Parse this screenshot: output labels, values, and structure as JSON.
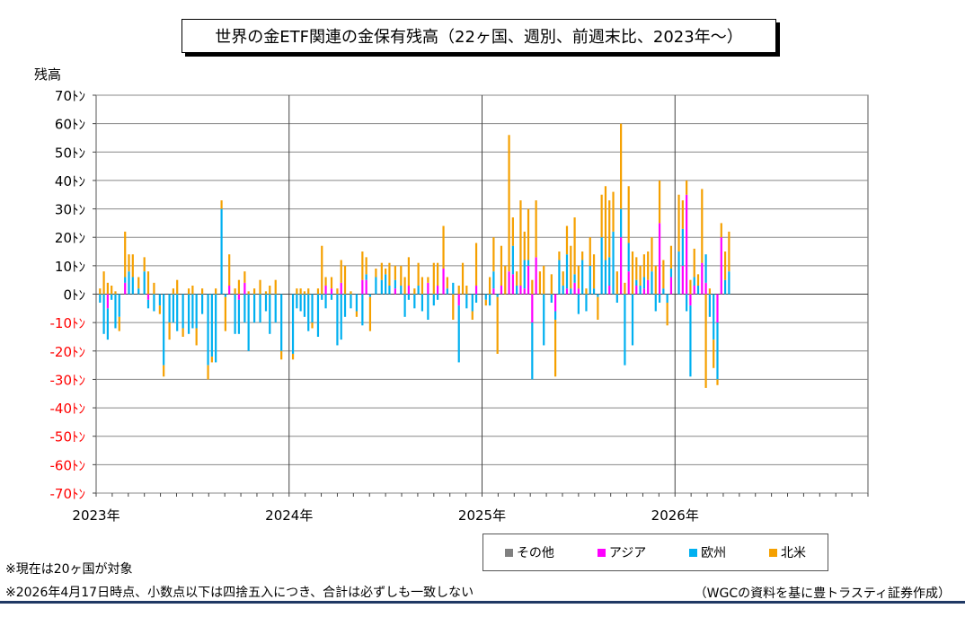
{
  "title": "世界の金ETF関連の金保有残高（22ヶ国、週別、前週末比、2023年～）",
  "ylabel": "残高",
  "legend": [
    {
      "label": "その他",
      "color": "#808080"
    },
    {
      "label": "アジア",
      "color": "#ff00ff"
    },
    {
      "label": "欧州",
      "color": "#00b0f0"
    },
    {
      "label": "北米",
      "color": "#f5a000"
    }
  ],
  "notes": [
    "※現在は20ヶ国が対象",
    "※2026年4月17日時点、小数点以下は四捨五入につき、合計は必ずしも一致しない"
  ],
  "source": "（WGCの資料を基に豊トラスティ証券作成）",
  "chart_data": {
    "type": "bar",
    "stacked": true,
    "x_tick_labels": [
      "2023年",
      "2024年",
      "2025年",
      "2026年"
    ],
    "y_tick_labels": [
      "70ﾄﾝ",
      "60ﾄﾝ",
      "50ﾄﾝ",
      "40ﾄﾝ",
      "30ﾄﾝ",
      "20ﾄﾝ",
      "10ﾄﾝ",
      "0ﾄﾝ",
      "-10ﾄﾝ",
      "-20ﾄﾝ",
      "-30ﾄﾝ",
      "-40ﾄﾝ",
      "-50ﾄﾝ",
      "-60ﾄﾝ",
      "-70ﾄﾝ"
    ],
    "ylim": [
      -70,
      70
    ],
    "x_range_years": [
      2023,
      2027
    ],
    "grid": true,
    "negative_tick_color": "#ff0000",
    "series_order": [
      "other",
      "asia",
      "europe",
      "north_america"
    ],
    "bars": [
      {
        "t": 2023.02,
        "north_america": 2,
        "europe": -3,
        "asia": 0
      },
      {
        "t": 2023.04,
        "north_america": 8,
        "europe": -14,
        "asia": 0
      },
      {
        "t": 2023.06,
        "north_america": 4,
        "europe": -11,
        "asia": -5
      },
      {
        "t": 2023.08,
        "north_america": 3,
        "europe": -2,
        "asia": 0
      },
      {
        "t": 2023.1,
        "north_america": 1,
        "europe": -12,
        "asia": 0
      },
      {
        "t": 2023.12,
        "north_america": -5,
        "europe": -8,
        "asia": 0
      },
      {
        "t": 2023.15,
        "north_america": 16,
        "europe": 2,
        "asia": 4
      },
      {
        "t": 2023.17,
        "north_america": 6,
        "europe": 8,
        "asia": 0
      },
      {
        "t": 2023.19,
        "north_america": 8,
        "europe": 6,
        "asia": 0
      },
      {
        "t": 2023.22,
        "north_america": 4,
        "europe": 2,
        "asia": 0
      },
      {
        "t": 2023.25,
        "north_america": 5,
        "europe": 8,
        "asia": 0
      },
      {
        "t": 2023.27,
        "north_america": 8,
        "europe": -3,
        "asia": -2
      },
      {
        "t": 2023.3,
        "north_america": 4,
        "europe": -6,
        "asia": 0
      },
      {
        "t": 2023.33,
        "north_america": -3,
        "europe": -4,
        "asia": 0
      },
      {
        "t": 2023.35,
        "north_america": -4,
        "europe": -25,
        "asia": 0
      },
      {
        "t": 2023.38,
        "north_america": -6,
        "europe": -10,
        "asia": 0
      },
      {
        "t": 2023.4,
        "north_america": 2,
        "europe": -10,
        "asia": 0
      },
      {
        "t": 2023.42,
        "north_america": 5,
        "europe": -13,
        "asia": 0
      },
      {
        "t": 2023.45,
        "north_america": -3,
        "europe": -12,
        "asia": 0
      },
      {
        "t": 2023.48,
        "north_america": 2,
        "europe": -14,
        "asia": 0
      },
      {
        "t": 2023.5,
        "north_america": 3,
        "europe": -12,
        "asia": 0
      },
      {
        "t": 2023.52,
        "north_america": -6,
        "europe": -12,
        "asia": 0
      },
      {
        "t": 2023.55,
        "north_america": 2,
        "europe": -7,
        "asia": 0
      },
      {
        "t": 2023.58,
        "north_america": -5,
        "europe": -25,
        "asia": 0
      },
      {
        "t": 2023.6,
        "north_america": -2,
        "europe": -22,
        "asia": 0
      },
      {
        "t": 2023.62,
        "north_america": 2,
        "europe": -24,
        "asia": 0
      },
      {
        "t": 2023.65,
        "north_america": 3,
        "europe": 30,
        "asia": 0
      },
      {
        "t": 2023.67,
        "north_america": -12,
        "europe": -1,
        "asia": 0
      },
      {
        "t": 2023.69,
        "north_america": 11,
        "europe": 0,
        "asia": 3
      },
      {
        "t": 2023.72,
        "north_america": 2,
        "europe": -14,
        "asia": 0
      },
      {
        "t": 2023.74,
        "north_america": 5,
        "europe": -12,
        "asia": -2
      },
      {
        "t": 2023.77,
        "north_america": 4,
        "europe": -10,
        "asia": 4
      },
      {
        "t": 2023.79,
        "north_america": 1,
        "europe": -20,
        "asia": 0
      },
      {
        "t": 2023.82,
        "north_america": 2,
        "europe": -10,
        "asia": 0
      },
      {
        "t": 2023.85,
        "north_america": 5,
        "europe": -10,
        "asia": 0
      },
      {
        "t": 2023.88,
        "north_america": 1,
        "europe": -6,
        "asia": 0
      },
      {
        "t": 2023.9,
        "north_america": 3,
        "europe": -14,
        "asia": 0
      },
      {
        "t": 2023.93,
        "north_america": 5,
        "europe": -10,
        "asia": 0
      },
      {
        "t": 2023.96,
        "north_america": -3,
        "europe": -20,
        "asia": 0
      },
      {
        "t": 2024.02,
        "north_america": -2,
        "europe": -21,
        "asia": 0
      },
      {
        "t": 2024.04,
        "north_america": 2,
        "europe": -5,
        "asia": 0
      },
      {
        "t": 2024.06,
        "north_america": 2,
        "europe": -6,
        "asia": 0
      },
      {
        "t": 2024.08,
        "north_america": 1,
        "europe": -8,
        "asia": 0
      },
      {
        "t": 2024.1,
        "north_america": 2,
        "europe": -13,
        "asia": 0
      },
      {
        "t": 2024.12,
        "north_america": -2,
        "europe": -10,
        "asia": 0
      },
      {
        "t": 2024.15,
        "north_america": 2,
        "europe": -15,
        "asia": 0
      },
      {
        "t": 2024.17,
        "north_america": 17,
        "europe": -2,
        "asia": 0
      },
      {
        "t": 2024.19,
        "north_america": 3,
        "europe": -5,
        "asia": 3
      },
      {
        "t": 2024.22,
        "north_america": 4,
        "europe": -2,
        "asia": 2
      },
      {
        "t": 2024.25,
        "north_america": 2,
        "europe": -18,
        "asia": 0
      },
      {
        "t": 2024.27,
        "north_america": 8,
        "europe": -16,
        "asia": 4
      },
      {
        "t": 2024.29,
        "north_america": 10,
        "europe": -8,
        "asia": 0
      },
      {
        "t": 2024.32,
        "north_america": 1,
        "europe": -5,
        "asia": 0
      },
      {
        "t": 2024.35,
        "north_america": -2,
        "europe": -6,
        "asia": 0
      },
      {
        "t": 2024.38,
        "north_america": 10,
        "europe": -11,
        "asia": 5
      },
      {
        "t": 2024.4,
        "north_america": 6,
        "europe": 2,
        "asia": 5
      },
      {
        "t": 2024.42,
        "north_america": -12,
        "europe": -1,
        "asia": 0
      },
      {
        "t": 2024.45,
        "north_america": 3,
        "europe": 6,
        "asia": 0
      },
      {
        "t": 2024.48,
        "north_america": 6,
        "europe": 5,
        "asia": 0
      },
      {
        "t": 2024.5,
        "north_america": 2,
        "europe": 7,
        "asia": 0
      },
      {
        "t": 2024.52,
        "north_america": 8,
        "europe": 3,
        "asia": 0
      },
      {
        "t": 2024.55,
        "north_america": 5,
        "europe": 3,
        "asia": 2
      },
      {
        "t": 2024.58,
        "north_america": 7,
        "europe": 3,
        "asia": 0
      },
      {
        "t": 2024.6,
        "north_america": 6,
        "europe": -8,
        "asia": 0
      },
      {
        "t": 2024.62,
        "north_america": 10,
        "europe": -2,
        "asia": 3
      },
      {
        "t": 2024.65,
        "north_america": 2,
        "europe": -5,
        "asia": 0
      },
      {
        "t": 2024.67,
        "north_america": 8,
        "europe": 3,
        "asia": 0
      },
      {
        "t": 2024.69,
        "north_america": 6,
        "europe": -6,
        "asia": 0
      },
      {
        "t": 2024.72,
        "north_america": 2,
        "europe": -9,
        "asia": 4
      },
      {
        "t": 2024.75,
        "north_america": 11,
        "europe": -4,
        "asia": 0
      },
      {
        "t": 2024.77,
        "north_america": 8,
        "europe": -2,
        "asia": 3
      },
      {
        "t": 2024.8,
        "north_america": 15,
        "europe": 0,
        "asia": 9
      },
      {
        "t": 2024.82,
        "north_america": 4,
        "europe": 2,
        "asia": 0
      },
      {
        "t": 2024.85,
        "north_america": -9,
        "europe": 4,
        "asia": 0
      },
      {
        "t": 2024.88,
        "north_america": 3,
        "europe": -20,
        "asia": -4
      },
      {
        "t": 2024.9,
        "north_america": 11,
        "europe": 0,
        "asia": 0
      },
      {
        "t": 2024.92,
        "north_america": 3,
        "europe": -5,
        "asia": 0
      },
      {
        "t": 2024.95,
        "north_america": -3,
        "europe": -6,
        "asia": 0
      },
      {
        "t": 2024.97,
        "north_america": 15,
        "europe": -3,
        "asia": 3
      },
      {
        "t": 2025.02,
        "north_america": -2,
        "europe": -2,
        "asia": 0
      },
      {
        "t": 2025.04,
        "north_america": 6,
        "europe": -4,
        "asia": 0
      },
      {
        "t": 2025.06,
        "north_america": 12,
        "europe": 6,
        "asia": 2
      },
      {
        "t": 2025.08,
        "north_america": -20,
        "europe": -1,
        "asia": 0
      },
      {
        "t": 2025.1,
        "north_america": 14,
        "europe": 0,
        "asia": 3
      },
      {
        "t": 2025.12,
        "north_america": 10,
        "europe": 0,
        "asia": 0
      },
      {
        "t": 2025.14,
        "north_america": 48,
        "europe": 0,
        "asia": 8
      },
      {
        "t": 2025.16,
        "north_america": 10,
        "europe": 10,
        "asia": 7
      },
      {
        "t": 2025.18,
        "north_america": 5,
        "europe": 3,
        "asia": 0
      },
      {
        "t": 2025.2,
        "north_america": 30,
        "europe": 0,
        "asia": 3
      },
      {
        "t": 2025.22,
        "north_america": 10,
        "europe": 10,
        "asia": 2
      },
      {
        "t": 2025.24,
        "north_america": 18,
        "europe": 2,
        "asia": 10
      },
      {
        "t": 2025.26,
        "north_america": 5,
        "europe": -20,
        "asia": -10
      },
      {
        "t": 2025.28,
        "north_america": 20,
        "europe": 0,
        "asia": 13
      },
      {
        "t": 2025.3,
        "north_america": 8,
        "europe": 0,
        "asia": 0
      },
      {
        "t": 2025.32,
        "north_america": 10,
        "europe": -18,
        "asia": 0
      },
      {
        "t": 2025.36,
        "north_america": 7,
        "europe": -3,
        "asia": 0
      },
      {
        "t": 2025.38,
        "north_america": -20,
        "europe": -3,
        "asia": -6
      },
      {
        "t": 2025.4,
        "north_america": 3,
        "europe": 12,
        "asia": 0
      },
      {
        "t": 2025.42,
        "north_america": 5,
        "europe": 3,
        "asia": 0
      },
      {
        "t": 2025.44,
        "north_america": 10,
        "europe": 12,
        "asia": 2
      },
      {
        "t": 2025.46,
        "north_america": 15,
        "europe": 2,
        "asia": 0
      },
      {
        "t": 2025.48,
        "north_america": 20,
        "europe": 3,
        "asia": 4
      },
      {
        "t": 2025.5,
        "north_america": 8,
        "europe": -7,
        "asia": 2
      },
      {
        "t": 2025.52,
        "north_america": 3,
        "europe": 12,
        "asia": 0
      },
      {
        "t": 2025.54,
        "north_america": 2,
        "europe": -6,
        "asia": 0
      },
      {
        "t": 2025.56,
        "north_america": 10,
        "europe": 10,
        "asia": 0
      },
      {
        "t": 2025.58,
        "north_america": 12,
        "europe": 2,
        "asia": 0
      },
      {
        "t": 2025.6,
        "north_america": -8,
        "europe": -1,
        "asia": 0
      },
      {
        "t": 2025.62,
        "north_america": 15,
        "europe": 20,
        "asia": 0
      },
      {
        "t": 2025.64,
        "north_america": 26,
        "europe": 12,
        "asia": 0
      },
      {
        "t": 2025.66,
        "north_america": 20,
        "europe": 10,
        "asia": 3
      },
      {
        "t": 2025.68,
        "north_america": 14,
        "europe": 22,
        "asia": 0
      },
      {
        "t": 2025.7,
        "north_america": 8,
        "europe": -3,
        "asia": 0
      },
      {
        "t": 2025.72,
        "north_america": 30,
        "europe": 10,
        "asia": 20
      },
      {
        "t": 2025.74,
        "north_america": 4,
        "europe": -25,
        "asia": 0
      },
      {
        "t": 2025.76,
        "north_america": 20,
        "europe": 10,
        "asia": 8
      },
      {
        "t": 2025.78,
        "north_america": 15,
        "europe": -18,
        "asia": 0
      },
      {
        "t": 2025.8,
        "north_america": 8,
        "europe": 2,
        "asia": 3
      },
      {
        "t": 2025.82,
        "north_america": 7,
        "europe": 3,
        "asia": 0
      },
      {
        "t": 2025.84,
        "north_america": 8,
        "europe": 4,
        "asia": 2
      },
      {
        "t": 2025.86,
        "north_america": 10,
        "europe": 0,
        "asia": 5
      },
      {
        "t": 2025.88,
        "north_america": 12,
        "europe": 8,
        "asia": 0
      },
      {
        "t": 2025.9,
        "north_america": 10,
        "europe": -6,
        "asia": 0
      },
      {
        "t": 2025.92,
        "north_america": 15,
        "europe": -3,
        "asia": 25
      },
      {
        "t": 2025.94,
        "north_america": 10,
        "europe": 2,
        "asia": 0
      },
      {
        "t": 2025.96,
        "north_america": -8,
        "europe": -3,
        "asia": 0
      },
      {
        "t": 2025.98,
        "north_america": 8,
        "europe": 3,
        "asia": 6
      },
      {
        "t": 2026.02,
        "north_america": 20,
        "europe": 15,
        "asia": 0
      },
      {
        "t": 2026.04,
        "north_america": 10,
        "europe": 13,
        "asia": 10
      },
      {
        "t": 2026.06,
        "north_america": 5,
        "europe": -6,
        "asia": 35
      },
      {
        "t": 2026.08,
        "north_america": 5,
        "europe": -25,
        "asia": -4
      },
      {
        "t": 2026.1,
        "north_america": 10,
        "europe": 3,
        "asia": 3
      },
      {
        "t": 2026.12,
        "north_america": 4,
        "europe": 3,
        "asia": 0
      },
      {
        "t": 2026.14,
        "north_america": 26,
        "europe": 0,
        "asia": 11
      },
      {
        "t": 2026.16,
        "north_america": -33,
        "europe": 10,
        "asia": 4
      },
      {
        "t": 2026.18,
        "north_america": 2,
        "europe": -8,
        "asia": 0
      },
      {
        "t": 2026.2,
        "north_america": -10,
        "europe": -16,
        "asia": 0
      },
      {
        "t": 2026.22,
        "north_america": -2,
        "europe": -20,
        "asia": -10
      },
      {
        "t": 2026.24,
        "north_america": 5,
        "europe": 0,
        "asia": 20
      },
      {
        "t": 2026.26,
        "north_america": 10,
        "europe": 5,
        "asia": 0
      },
      {
        "t": 2026.28,
        "north_america": 14,
        "europe": 8,
        "asia": 0
      }
    ]
  }
}
